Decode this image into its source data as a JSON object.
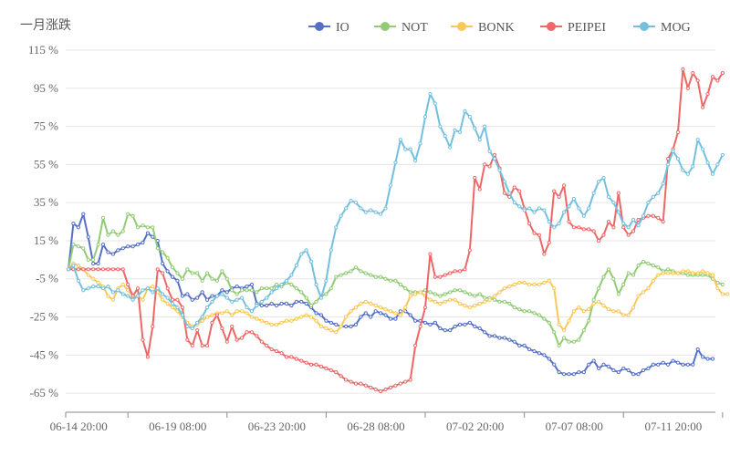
{
  "chart_data": {
    "type": "line",
    "ylabel": "一月涨跌",
    "yunit": "%",
    "yticks": [
      115,
      95,
      75,
      55,
      35,
      15,
      -5,
      -25,
      -45,
      -65
    ],
    "ytick_labels": [
      "115 %",
      "95 %",
      "75 %",
      "55 %",
      "35 %",
      "15 %",
      "-5 %",
      "-25 %",
      "-45 %",
      "-65 %"
    ],
    "ylim": [
      -75,
      115
    ],
    "xtick_labels": [
      "06-14 20:00",
      "06-19 08:00",
      "06-23 20:00",
      "06-28 08:00",
      "07-02 20:00",
      "07-07 08:00",
      "07-11 20:00"
    ],
    "xtick_index": [
      12,
      32,
      52,
      72,
      92,
      112,
      132
    ],
    "grid": true,
    "legend_position": "top-right",
    "series": [
      {
        "name": "IO",
        "color": "#5470c6",
        "values": [
          0,
          24,
          22,
          29,
          17,
          3,
          3,
          13,
          9,
          8,
          10,
          11,
          12,
          12,
          13,
          14,
          19,
          17,
          15,
          3,
          -1,
          -4,
          -6,
          -14,
          -13,
          -16,
          -15,
          -12,
          -16,
          -14,
          -14,
          -11,
          -12,
          -10,
          -9,
          -10,
          -9,
          -8,
          -18,
          -19,
          -19,
          -18,
          -19,
          -18,
          -18,
          -19,
          -17,
          -17,
          -18,
          -20,
          -23,
          -24,
          -27,
          -28,
          -29,
          -30,
          -30,
          -30,
          -29,
          -25,
          -23,
          -25,
          -22,
          -23,
          -24,
          -26,
          -26,
          -22,
          -22,
          -24,
          -27,
          -27,
          -28,
          -29,
          -28,
          -31,
          -32,
          -32,
          -30,
          -29,
          -29,
          -28,
          -30,
          -31,
          -33,
          -35,
          -35,
          -36,
          -36,
          -37,
          -38,
          -40,
          -40,
          -42,
          -43,
          -44,
          -45,
          -47,
          -50,
          -54,
          -55,
          -55,
          -55,
          -54,
          -54,
          -50,
          -48,
          -52,
          -50,
          -51,
          -53,
          -54,
          -52,
          -53,
          -55,
          -55,
          -53,
          -52,
          -50,
          -50,
          -49,
          -50,
          -48,
          -49,
          -50,
          -50,
          -50,
          -42,
          -46,
          -47,
          -47
        ]
      },
      {
        "name": "NOT",
        "color": "#91cc75",
        "values": [
          0,
          13,
          12,
          11,
          5,
          5,
          13,
          27,
          18,
          20,
          18,
          20,
          29,
          28,
          22,
          23,
          22,
          22,
          11,
          9,
          6,
          1,
          -2,
          -5,
          0,
          -2,
          -2,
          -6,
          -2,
          -5,
          -6,
          -1,
          -5,
          -11,
          -13,
          -11,
          -11,
          -11,
          -12,
          -10,
          -10,
          -10,
          -8,
          -9,
          -7,
          -8,
          -10,
          -12,
          -15,
          -19,
          -17,
          -14,
          -13,
          -10,
          -4,
          -3,
          -2,
          -1,
          1,
          -1,
          -2,
          -3,
          -4,
          -4,
          -5,
          -6,
          -6,
          -8,
          -10,
          -12,
          -12,
          -12,
          -11,
          -12,
          -13,
          -14,
          -13,
          -12,
          -11,
          -11,
          -12,
          -13,
          -14,
          -13,
          -15,
          -15,
          -16,
          -17,
          -17,
          -18,
          -20,
          -21,
          -22,
          -22,
          -23,
          -24,
          -26,
          -28,
          -33,
          -40,
          -36,
          -38,
          -38,
          -37,
          -32,
          -27,
          -16,
          -10,
          -4,
          0,
          -5,
          -13,
          -8,
          -2,
          -3,
          2,
          4,
          3,
          2,
          1,
          -1,
          0,
          -1,
          -2,
          -2,
          -3,
          -3,
          -3,
          -3,
          -3,
          -5,
          -7,
          -8
        ]
      },
      {
        "name": "BONK",
        "color": "#fac858",
        "values": [
          0,
          3,
          2,
          0,
          -3,
          -5,
          -7,
          -9,
          -14,
          -16,
          -10,
          -8,
          -11,
          -14,
          -14,
          -16,
          -10,
          -9,
          -12,
          -16,
          -18,
          -20,
          -22,
          -25,
          -28,
          -30,
          -29,
          -27,
          -25,
          -24,
          -23,
          -23,
          -22,
          -24,
          -22,
          -22,
          -23,
          -25,
          -26,
          -27,
          -28,
          -29,
          -29,
          -28,
          -27,
          -27,
          -26,
          -25,
          -24,
          -25,
          -27,
          -30,
          -31,
          -32,
          -33,
          -30,
          -25,
          -22,
          -20,
          -18,
          -17,
          -18,
          -19,
          -20,
          -21,
          -22,
          -23,
          -24,
          -20,
          -14,
          -13,
          -12,
          -14,
          -16,
          -17,
          -18,
          -17,
          -16,
          -16,
          -18,
          -19,
          -20,
          -19,
          -18,
          -17,
          -16,
          -14,
          -12,
          -10,
          -9,
          -8,
          -7,
          -7,
          -8,
          -8,
          -8,
          -7,
          -6,
          -10,
          -29,
          -32,
          -27,
          -22,
          -20,
          -22,
          -21,
          -18,
          -17,
          -19,
          -21,
          -22,
          -22,
          -24,
          -24,
          -20,
          -14,
          -12,
          -10,
          -6,
          -3,
          -2,
          -2,
          -2,
          -2,
          -1,
          -1,
          -2,
          -2,
          -1,
          -2,
          -3,
          -10,
          -13,
          -13
        ]
      },
      {
        "name": "PEIPEI",
        "color": "#ee6666",
        "values": [
          0,
          0,
          0,
          0,
          0,
          0,
          0,
          0,
          0,
          0,
          0,
          0,
          -8,
          -14,
          -10,
          -37,
          -46,
          -30,
          0,
          -2,
          -10,
          -16,
          -16,
          -20,
          -37,
          -40,
          -32,
          -40,
          -40,
          -28,
          -24,
          -31,
          -38,
          -30,
          -37,
          -36,
          -33,
          -33,
          -35,
          -38,
          -40,
          -42,
          -43,
          -44,
          -46,
          -46,
          -47,
          -48,
          -49,
          -50,
          -50,
          -51,
          -52,
          -53,
          -54,
          -56,
          -58,
          -59,
          -60,
          -60,
          -61,
          -62,
          -63,
          -64,
          -63,
          -62,
          -61,
          -60,
          -59,
          -58,
          -40,
          -30,
          -20,
          8,
          -4,
          -4,
          -3,
          -2,
          -1,
          -1,
          0,
          10,
          48,
          42,
          55,
          54,
          60,
          53,
          40,
          38,
          43,
          41,
          32,
          24,
          19,
          18,
          8,
          14,
          41,
          38,
          44,
          25,
          22,
          22,
          21,
          21,
          20,
          15,
          18,
          25,
          22,
          40,
          22,
          18,
          20,
          26,
          27,
          28,
          28,
          27,
          25,
          58,
          63,
          72,
          105,
          95,
          103,
          99,
          85,
          92,
          101,
          99,
          103
        ]
      },
      {
        "name": "MOG",
        "color": "#73c0de",
        "values": [
          0,
          2,
          -6,
          -11,
          -10,
          -9,
          -9,
          -10,
          -9,
          -12,
          -11,
          -13,
          -14,
          -16,
          -14,
          -11,
          -10,
          -12,
          -10,
          -13,
          -15,
          -18,
          -20,
          -24,
          -30,
          -31,
          -28,
          -25,
          -20,
          -17,
          -14,
          -13,
          -15,
          -17,
          -16,
          -15,
          -20,
          -22,
          -19,
          -17,
          -15,
          -12,
          -10,
          -8,
          -6,
          -3,
          2,
          8,
          10,
          4,
          -8,
          -15,
          -6,
          10,
          22,
          28,
          32,
          36,
          35,
          32,
          30,
          31,
          30,
          29,
          32,
          44,
          56,
          68,
          63,
          63,
          57,
          66,
          80,
          92,
          87,
          75,
          70,
          64,
          73,
          72,
          83,
          80,
          74,
          68,
          75,
          62,
          58,
          52,
          46,
          40,
          35,
          33,
          31,
          32,
          30,
          32,
          31,
          25,
          22,
          24,
          30,
          33,
          37,
          32,
          28,
          32,
          40,
          46,
          48,
          38,
          35,
          30,
          24,
          22,
          26,
          23,
          28,
          35,
          38,
          40,
          45,
          55,
          62,
          58,
          52,
          50,
          54,
          68,
          63,
          56,
          50,
          55,
          60
        ]
      }
    ]
  }
}
